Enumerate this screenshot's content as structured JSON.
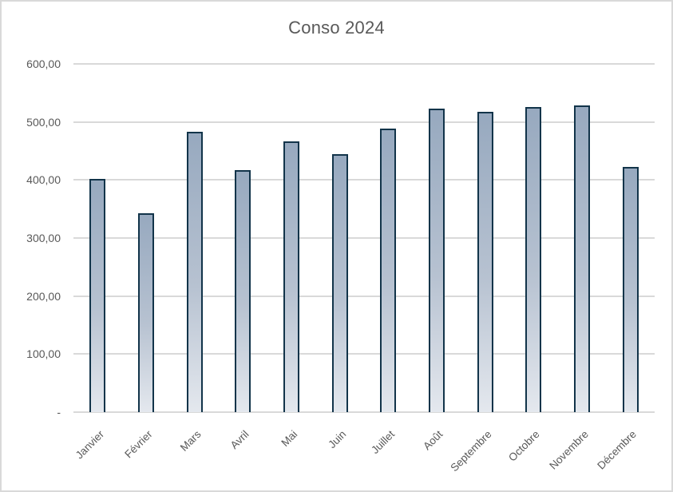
{
  "window": {
    "background": "#ffffff",
    "border_color": "#d9d9d9"
  },
  "chart_data": {
    "type": "bar",
    "title": "Conso 2024",
    "categories": [
      "Janvier",
      "Février",
      "Mars",
      "Avril",
      "Mai",
      "Juin",
      "Juillet",
      "Août",
      "Septembre",
      "Octobre",
      "Novembre",
      "Décembre"
    ],
    "values": [
      402,
      342,
      483,
      417,
      466,
      444,
      488,
      523,
      517,
      526,
      528,
      422
    ],
    "xlabel": "",
    "ylabel": "",
    "ylim": [
      0,
      600
    ],
    "y_tick_interval": 100,
    "y_tick_labels": [
      "600,00",
      "500,00",
      "400,00",
      "300,00",
      "200,00",
      "100,00",
      "-"
    ],
    "grid": "horizontal",
    "legend": "none",
    "colors": {
      "title_text": "#595959",
      "axis_text": "#595959",
      "gridline": "#d9d9d9",
      "bar_border": "#12344a",
      "bar_fill_top": "#97a9bf",
      "bar_fill_bottom": "#e4e8ee"
    }
  }
}
